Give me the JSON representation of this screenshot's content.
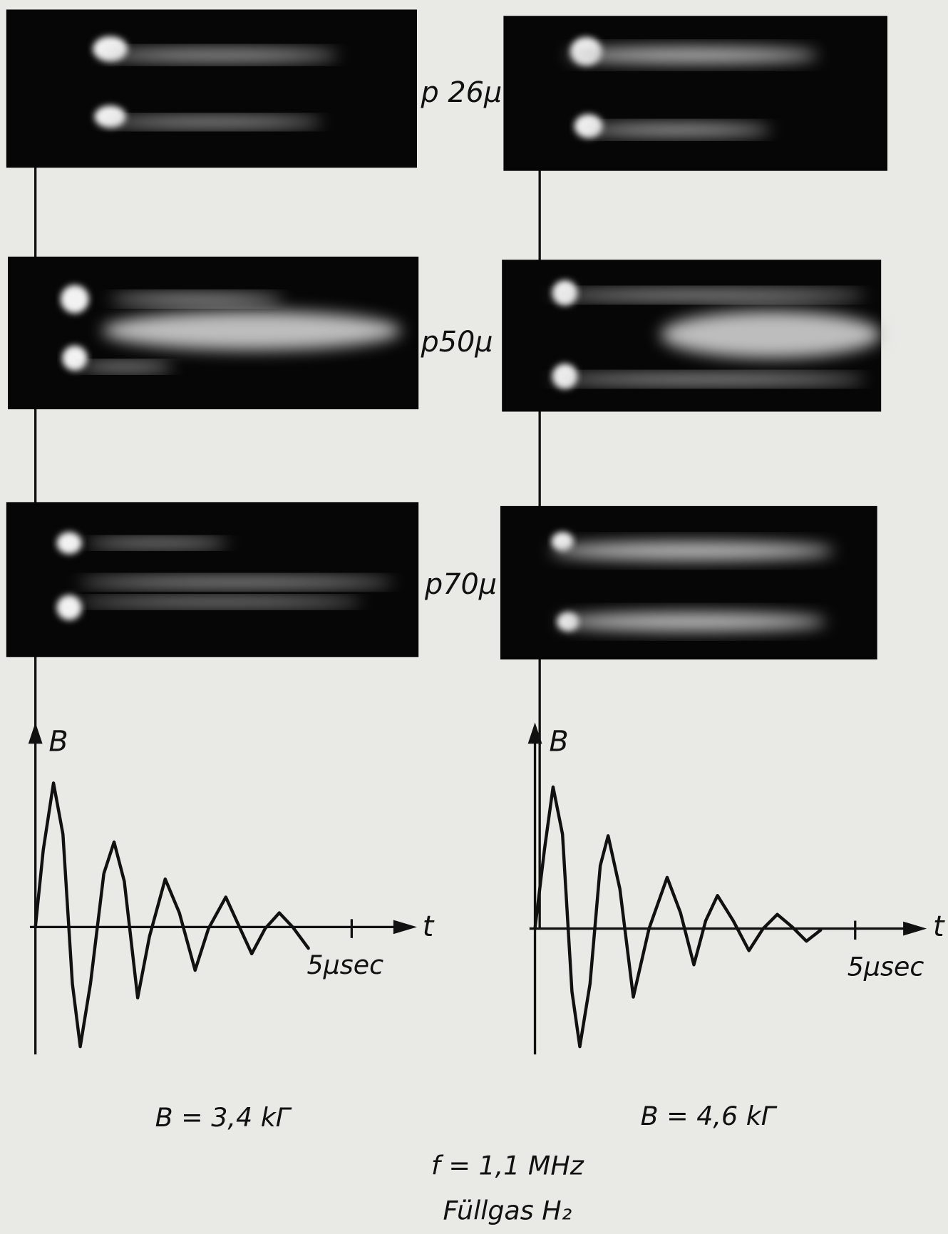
{
  "photos": {
    "pressure_labels": [
      "p 26μ",
      "p50μ",
      "p70μ"
    ]
  },
  "plots": [
    {
      "y_label": "B",
      "x_label": "t",
      "tick_label": "5μsec",
      "caption": "B = 3,4 kΓ"
    },
    {
      "y_label": "B",
      "x_label": "t",
      "tick_label": "5μsec",
      "caption": "B = 4,6 kΓ"
    }
  ],
  "footer": {
    "frequency": "f = 1,1 MHz",
    "gas": "Füllgas H₂"
  }
}
